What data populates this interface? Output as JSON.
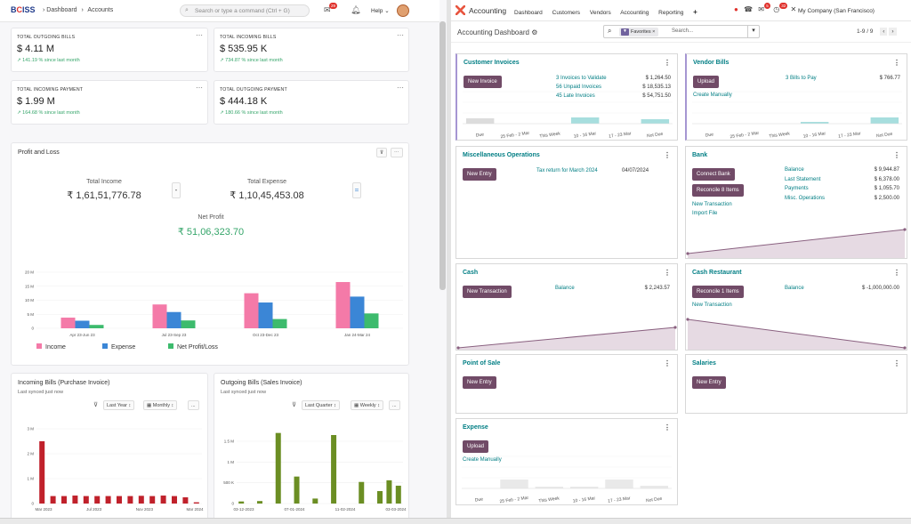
{
  "left": {
    "brand": {
      "prefix": "B",
      "c": "C",
      "suffix": "ISS"
    },
    "breadcrumb": {
      "home": "Dashboard",
      "current": "Accounts",
      "sep": "›"
    },
    "search_placeholder": "Search or type a command (Ctrl + G)",
    "notif_count": "29",
    "help": "Help",
    "kpis": [
      {
        "label": "TOTAL OUTGOING BILLS",
        "value": "$ 4.11 M",
        "change": "141.19 % since last month"
      },
      {
        "label": "TOTAL INCOMING BILLS",
        "value": "$ 535.95 K",
        "change": "734.87 % since last month"
      },
      {
        "label": "TOTAL INCOMING PAYMENT",
        "value": "$ 1.99 M",
        "change": "164.68 % since last month"
      },
      {
        "label": "TOTAL OUTGOING PAYMENT",
        "value": "$ 444.18 K",
        "change": "180.66 % since last month"
      }
    ],
    "pl": {
      "title": "Profit and Loss",
      "income_label": "Total Income",
      "income_value": "₹ 1,61,51,776.78",
      "expense_label": "Total Expense",
      "expense_value": "₹ 1,10,45,453.08",
      "minus": "-",
      "equals": "=",
      "net_label": "Net Profit",
      "net_value": "₹ 51,06,323.70",
      "legend": [
        "Income",
        "Expense",
        "Net Profit/Loss"
      ],
      "colors": [
        "#f47aa8",
        "#3b86d6",
        "#3dbb6d"
      ]
    },
    "incoming": {
      "title": "Incoming Bills (Purchase Invoice)",
      "sub": "Last synced just now",
      "period": "Last Year",
      "freq": "Monthly",
      "more": "..."
    },
    "outgoing": {
      "title": "Outgoing Bills (Sales Invoice)",
      "sub": "Last synced just now",
      "period": "Last Quarter",
      "freq": "Weekly",
      "more": "..."
    }
  },
  "chart_data": [
    {
      "type": "bar",
      "title": "Profit and Loss",
      "categories": [
        "Apr 23-Jun 23",
        "Jul 23-Sep 23",
        "Oct 23-Dec 23",
        "Jan 24-Mar 24"
      ],
      "y_ticks": [
        "0",
        "5 M",
        "10 M",
        "15 M",
        "20 M"
      ],
      "ylim": [
        0,
        20000000
      ],
      "series": [
        {
          "name": "Income",
          "values": [
            3800000,
            8500000,
            12500000,
            16500000
          ]
        },
        {
          "name": "Expense",
          "values": [
            2700000,
            5800000,
            9200000,
            11300000
          ]
        },
        {
          "name": "Net Profit/Loss",
          "values": [
            1200000,
            2800000,
            3300000,
            5300000
          ]
        }
      ]
    },
    {
      "type": "bar",
      "title": "Incoming Bills (Purchase Invoice)",
      "x_labels": [
        "Mar 2023",
        "Jul 2023",
        "Nov 2023",
        "Mar 2024"
      ],
      "y_ticks": [
        "0",
        "1 M",
        "2 M",
        "3 M"
      ],
      "ylim": [
        0,
        3000000
      ],
      "values": [
        2500000,
        300000,
        300000,
        320000,
        300000,
        300000,
        300000,
        300000,
        300000,
        310000,
        300000,
        320000,
        300000,
        250000,
        50000
      ]
    },
    {
      "type": "bar",
      "title": "Outgoing Bills (Sales Invoice)",
      "x_labels": [
        "03-12-2023",
        "07-01-2024",
        "11-02-2024",
        "03-03-2024"
      ],
      "y_ticks": [
        "0",
        "500 K",
        "1 M",
        "1.5 M"
      ],
      "ylim": [
        0,
        1800000
      ],
      "values": [
        50000,
        0,
        60000,
        0,
        1700000,
        0,
        650000,
        0,
        120000,
        0,
        1650000,
        0,
        0,
        520000,
        0,
        300000,
        560000,
        430000
      ]
    }
  ],
  "right": {
    "app": "Accounting",
    "menu": [
      "Dashboard",
      "Customers",
      "Vendors",
      "Accounting",
      "Reporting",
      "+"
    ],
    "badges": {
      "msg": "5",
      "activity": "32"
    },
    "company": "My Company (San Francisco)",
    "page_title": "Accounting Dashboard",
    "filter": "Favorites",
    "search_placeholder": "Search...",
    "pager": "1-9 / 9",
    "accent": "#714b67",
    "teal": "#017e84",
    "cards": {
      "customer_invoices": {
        "title": "Customer Invoices",
        "button": "New Invoice",
        "rows": [
          {
            "label": "3 Invoices to Validate",
            "amount": "$ 1,264.50"
          },
          {
            "label": "56 Unpaid Invoices",
            "amount": "$ 18,535.13"
          },
          {
            "label": "45 Late Invoices",
            "amount": "$ 54,751.50"
          }
        ],
        "x_labels": [
          "Due",
          "25 Feb - 2 Mar",
          "This Week",
          "10 - 16 Mar",
          "17 - 23 Mar",
          "Not Due"
        ]
      },
      "vendor_bills": {
        "title": "Vendor Bills",
        "button": "Upload",
        "link": "Create Manually",
        "rows": [
          {
            "label": "3 Bills to Pay",
            "amount": "$ 766.77"
          }
        ],
        "x_labels": [
          "Due",
          "25 Feb - 2 Mar",
          "This Week",
          "10 - 16 Mar",
          "17 - 23 Mar",
          "Not Due"
        ]
      },
      "misc": {
        "title": "Miscellaneous Operations",
        "button": "New Entry",
        "rows": [
          {
            "label": "Tax return for March 2024",
            "date": "04/07/2024"
          }
        ]
      },
      "bank": {
        "title": "Bank",
        "button1": "Connect Bank",
        "button2": "Reconcile 8 Items",
        "links": [
          "New Transaction",
          "Import File"
        ],
        "rows": [
          {
            "label": "Balance",
            "amount": "$ 9,944.87"
          },
          {
            "label": "Last Statement",
            "amount": "$ 6,378.00"
          },
          {
            "label": "Payments",
            "amount": "$ 1,055.70"
          },
          {
            "label": "Misc. Operations",
            "amount": "$ 2,500.00"
          }
        ]
      },
      "cash": {
        "title": "Cash",
        "button": "New Transaction",
        "rows": [
          {
            "label": "Balance",
            "amount": "$ 2,243.57"
          }
        ]
      },
      "cash_restaurant": {
        "title": "Cash Restaurant",
        "button": "Reconcile 1 Items",
        "link": "New Transaction",
        "rows": [
          {
            "label": "Balance",
            "amount": "$ -1,000,000.00"
          }
        ]
      },
      "pos": {
        "title": "Point of Sale",
        "button": "New Entry"
      },
      "salaries": {
        "title": "Salaries",
        "button": "New Entry"
      },
      "expense": {
        "title": "Expense",
        "button": "Upload",
        "link": "Create Manually",
        "x_labels": [
          "Due",
          "25 Feb - 2 Mar",
          "This Week",
          "10 - 16 Mar",
          "17 - 23 Mar",
          "Not Due"
        ]
      }
    }
  }
}
